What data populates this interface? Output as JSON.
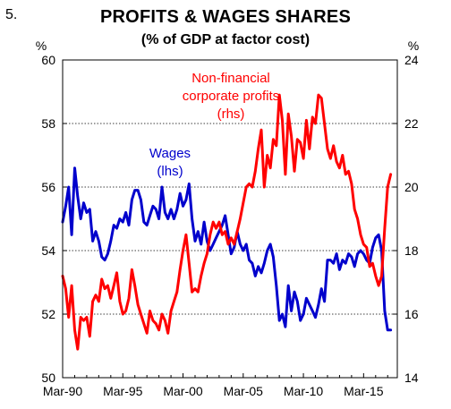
{
  "figure_number": "5.",
  "chart_data": {
    "type": "line",
    "title": "PROFITS & WAGES SHARES",
    "subtitle": "(% of GDP at factor cost)",
    "left_unit": "%",
    "right_unit": "%",
    "x_labels": [
      "Mar-90",
      "Mar-95",
      "Mar-00",
      "Mar-05",
      "Mar-10",
      "Mar-15"
    ],
    "x_label_years": [
      1990,
      1995,
      2000,
      2005,
      2010,
      2015
    ],
    "xlim": [
      1990.0,
      2017.8
    ],
    "left_axis": {
      "ylim": [
        50,
        60
      ],
      "ticks": [
        50,
        52,
        54,
        56,
        58,
        60
      ]
    },
    "right_axis": {
      "ylim": [
        14,
        24
      ],
      "ticks": [
        14,
        16,
        18,
        20,
        22,
        24
      ]
    },
    "grid": "horizontal dotted",
    "annotations": [
      {
        "series": "profits",
        "lines": [
          "Non-financial",
          "corporate profits",
          "(rhs)"
        ],
        "color": "#ff0000"
      },
      {
        "series": "wages",
        "lines": [
          "Wages",
          "(lhs)"
        ],
        "color": "#0000cc"
      }
    ],
    "series": [
      {
        "id": "wages",
        "axis": "left",
        "color": "#0000cc",
        "x": [
          1990.0,
          1990.25,
          1990.5,
          1990.75,
          1991.0,
          1991.25,
          1991.5,
          1991.75,
          1992.0,
          1992.25,
          1992.5,
          1992.75,
          1993.0,
          1993.25,
          1993.5,
          1993.75,
          1994.0,
          1994.25,
          1994.5,
          1994.75,
          1995.0,
          1995.25,
          1995.5,
          1995.75,
          1996.0,
          1996.25,
          1996.5,
          1996.75,
          1997.0,
          1997.25,
          1997.5,
          1997.75,
          1998.0,
          1998.25,
          1998.5,
          1998.75,
          1999.0,
          1999.25,
          1999.5,
          1999.75,
          2000.0,
          2000.25,
          2000.5,
          2000.75,
          2001.0,
          2001.25,
          2001.5,
          2001.75,
          2002.0,
          2002.25,
          2002.5,
          2002.75,
          2003.0,
          2003.25,
          2003.5,
          2003.75,
          2004.0,
          2004.25,
          2004.5,
          2004.75,
          2005.0,
          2005.25,
          2005.5,
          2005.75,
          2006.0,
          2006.25,
          2006.5,
          2006.75,
          2007.0,
          2007.25,
          2007.5,
          2007.75,
          2008.0,
          2008.25,
          2008.5,
          2008.75,
          2009.0,
          2009.25,
          2009.5,
          2009.75,
          2010.0,
          2010.25,
          2010.5,
          2010.75,
          2011.0,
          2011.25,
          2011.5,
          2011.75,
          2012.0,
          2012.25,
          2012.5,
          2012.75,
          2013.0,
          2013.25,
          2013.5,
          2013.75,
          2014.0,
          2014.25,
          2014.5,
          2014.75,
          2015.0,
          2015.25,
          2015.5,
          2015.75,
          2016.0,
          2016.25,
          2016.5,
          2016.75,
          2017.0,
          2017.25
        ],
        "values": [
          54.9,
          55.4,
          56.0,
          54.5,
          56.6,
          55.7,
          55.0,
          55.5,
          55.2,
          55.3,
          54.3,
          54.6,
          54.3,
          53.8,
          53.7,
          53.9,
          54.3,
          54.8,
          54.7,
          55.0,
          54.9,
          55.2,
          54.8,
          55.6,
          55.9,
          55.9,
          55.6,
          54.9,
          54.8,
          55.1,
          55.4,
          55.3,
          55.0,
          56.0,
          55.2,
          55.0,
          55.3,
          55.0,
          55.3,
          55.8,
          55.4,
          55.6,
          56.1,
          55.0,
          54.3,
          54.6,
          54.2,
          54.9,
          54.3,
          54.0,
          54.2,
          54.4,
          54.6,
          54.8,
          55.1,
          54.5,
          53.9,
          54.1,
          54.6,
          54.2,
          54.0,
          54.2,
          53.7,
          53.6,
          53.2,
          53.5,
          53.3,
          53.6,
          54.0,
          54.2,
          53.8,
          52.9,
          51.8,
          52.0,
          51.6,
          52.9,
          52.1,
          52.7,
          52.4,
          51.8,
          52.0,
          52.5,
          52.3,
          52.1,
          51.9,
          52.3,
          52.8,
          52.4,
          53.7,
          53.7,
          53.6,
          53.9,
          53.4,
          53.7,
          53.6,
          53.9,
          53.8,
          53.5,
          53.9,
          54.0,
          53.9,
          53.7,
          53.6,
          54.1,
          54.4,
          54.5,
          54.0,
          52.1,
          51.5,
          51.5
        ],
        "label_source": "annotations.1"
      },
      {
        "id": "profits",
        "axis": "right",
        "color": "#ff0000",
        "x": [
          1990.0,
          1990.25,
          1990.5,
          1990.75,
          1991.0,
          1991.25,
          1991.5,
          1991.75,
          1992.0,
          1992.25,
          1992.5,
          1992.75,
          1993.0,
          1993.25,
          1993.5,
          1993.75,
          1994.0,
          1994.25,
          1994.5,
          1994.75,
          1995.0,
          1995.25,
          1995.5,
          1995.75,
          1996.0,
          1996.25,
          1996.5,
          1996.75,
          1997.0,
          1997.25,
          1997.5,
          1997.75,
          1998.0,
          1998.25,
          1998.5,
          1998.75,
          1999.0,
          1999.25,
          1999.5,
          1999.75,
          2000.0,
          2000.25,
          2000.5,
          2000.75,
          2001.0,
          2001.25,
          2001.5,
          2001.75,
          2002.0,
          2002.25,
          2002.5,
          2002.75,
          2003.0,
          2003.25,
          2003.5,
          2003.75,
          2004.0,
          2004.25,
          2004.5,
          2004.75,
          2005.0,
          2005.25,
          2005.5,
          2005.75,
          2006.0,
          2006.25,
          2006.5,
          2006.75,
          2007.0,
          2007.25,
          2007.5,
          2007.75,
          2008.0,
          2008.25,
          2008.5,
          2008.75,
          2009.0,
          2009.25,
          2009.5,
          2009.75,
          2010.0,
          2010.25,
          2010.5,
          2010.75,
          2011.0,
          2011.25,
          2011.5,
          2011.75,
          2012.0,
          2012.25,
          2012.5,
          2012.75,
          2013.0,
          2013.25,
          2013.5,
          2013.75,
          2014.0,
          2014.25,
          2014.5,
          2014.75,
          2015.0,
          2015.25,
          2015.5,
          2015.75,
          2016.0,
          2016.25,
          2016.5,
          2016.75,
          2017.0,
          2017.25
        ],
        "values": [
          17.2,
          16.8,
          15.9,
          16.9,
          15.5,
          14.9,
          15.9,
          15.8,
          15.9,
          15.3,
          16.4,
          16.6,
          16.4,
          17.1,
          16.8,
          16.9,
          16.5,
          16.9,
          17.3,
          16.4,
          16.0,
          16.1,
          16.5,
          17.4,
          16.9,
          16.3,
          16.0,
          15.7,
          15.4,
          16.1,
          15.8,
          15.7,
          15.5,
          16.0,
          15.8,
          15.4,
          16.1,
          16.4,
          16.7,
          17.4,
          18.0,
          18.5,
          17.6,
          16.7,
          16.8,
          16.7,
          17.2,
          17.6,
          17.9,
          18.5,
          18.9,
          18.7,
          18.9,
          18.5,
          18.6,
          18.2,
          18.4,
          18.2,
          18.6,
          19.0,
          19.5,
          20.0,
          20.1,
          20.0,
          20.5,
          21.2,
          21.8,
          20.0,
          21.0,
          20.6,
          21.5,
          21.3,
          22.9,
          22.1,
          20.4,
          22.3,
          21.6,
          20.5,
          21.5,
          21.4,
          20.9,
          22.1,
          21.2,
          22.2,
          22.0,
          22.9,
          22.8,
          22.0,
          21.2,
          20.9,
          21.3,
          20.8,
          20.6,
          21.0,
          20.4,
          20.5,
          20.1,
          19.3,
          19.0,
          18.5,
          18.2,
          18.1,
          17.5,
          17.6,
          17.2,
          16.9,
          17.2,
          18.7,
          20.0,
          20.4
        ],
        "label_source": "annotations.0"
      }
    ]
  }
}
